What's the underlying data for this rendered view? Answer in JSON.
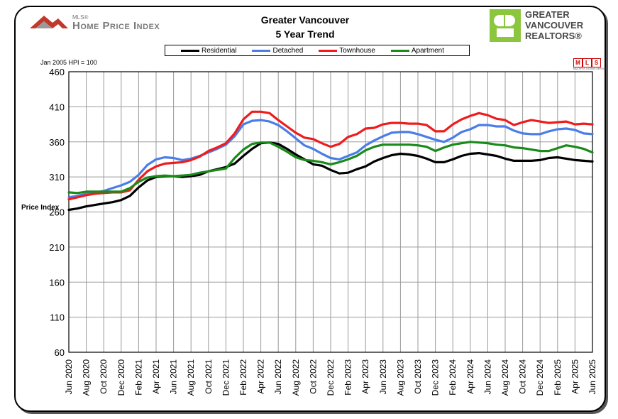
{
  "header": {
    "mls_small": "MLS®",
    "mls_title": "Home Price Index",
    "title_line1": "Greater Vancouver",
    "title_line2": "5 Year Trend",
    "brand_line1": "GREATER",
    "brand_line2": "VANCOUVER",
    "brand_line3": "REALTORS®",
    "hpi_note": "Jan 2005 HPI = 100",
    "crea_tag": "MULTIPLE LISTING SERVICE"
  },
  "colors": {
    "Residential": "#000000",
    "Detached": "#4a7de8",
    "Townhouse": "#ee1c1c",
    "Apartment": "#1a8a1a",
    "grid": "#9a9a9a"
  },
  "chart_data": {
    "type": "line",
    "title": "Greater Vancouver 5 Year Trend",
    "ylabel": "Price Index",
    "xlabel": "",
    "ylim": [
      60,
      460
    ],
    "yticks": [
      60,
      110,
      160,
      210,
      260,
      310,
      360,
      410,
      460
    ],
    "grid": true,
    "legend": "top-center",
    "xtick_labels": [
      "Jun 2020",
      "Aug 2020",
      "Oct 2020",
      "Dec 2020",
      "Feb 2021",
      "Apr 2021",
      "Jun 2021",
      "Aug 2021",
      "Oct 2021",
      "Dec 2021",
      "Feb 2022",
      "Apr 2022",
      "Jun 2022",
      "Aug 2022",
      "Oct 2022",
      "Dec 2022",
      "Feb 2023",
      "Apr 2023",
      "Jun 2023",
      "Aug 2023",
      "Oct 2023",
      "Dec 2023",
      "Feb 2024",
      "Apr 2024",
      "Jun 2024",
      "Aug 2024",
      "Oct 2024",
      "Dec 2024",
      "Feb 2025",
      "Apr 2025",
      "Jun 2025"
    ],
    "series": [
      {
        "name": "Residential",
        "values": [
          263,
          265,
          268,
          270,
          272,
          274,
          277,
          283,
          295,
          305,
          310,
          311,
          311,
          310,
          311,
          313,
          318,
          321,
          324,
          329,
          340,
          350,
          358,
          359,
          357,
          350,
          342,
          335,
          328,
          326,
          320,
          315,
          316,
          321,
          325,
          332,
          337,
          341,
          343,
          342,
          340,
          336,
          331,
          331,
          335,
          340,
          343,
          344,
          342,
          340,
          336,
          333,
          333,
          333,
          334,
          337,
          338,
          336,
          334,
          333,
          332
        ]
      },
      {
        "name": "Detached",
        "values": [
          281,
          283,
          286,
          288,
          290,
          294,
          298,
          303,
          313,
          327,
          335,
          338,
          337,
          334,
          336,
          340,
          345,
          350,
          356,
          368,
          385,
          390,
          391,
          389,
          384,
          375,
          365,
          355,
          350,
          343,
          337,
          335,
          340,
          345,
          355,
          362,
          368,
          373,
          374,
          374,
          371,
          367,
          363,
          360,
          366,
          374,
          378,
          384,
          384,
          382,
          382,
          376,
          372,
          371,
          371,
          375,
          378,
          379,
          377,
          372,
          371
        ]
      },
      {
        "name": "Townhouse",
        "values": [
          278,
          281,
          284,
          286,
          287,
          288,
          288,
          291,
          306,
          318,
          325,
          329,
          330,
          331,
          334,
          339,
          347,
          352,
          358,
          372,
          392,
          403,
          403,
          401,
          391,
          382,
          373,
          366,
          364,
          358,
          353,
          357,
          367,
          371,
          379,
          380,
          385,
          387,
          387,
          386,
          386,
          384,
          375,
          375,
          385,
          392,
          397,
          401,
          398,
          393,
          391,
          384,
          388,
          391,
          389,
          387,
          388,
          389,
          385,
          386,
          385
        ]
      },
      {
        "name": "Apartment",
        "values": [
          288,
          287,
          289,
          289,
          289,
          289,
          289,
          294,
          303,
          309,
          311,
          312,
          311,
          312,
          313,
          316,
          318,
          320,
          322,
          337,
          349,
          357,
          359,
          359,
          353,
          346,
          338,
          334,
          333,
          331,
          328,
          331,
          335,
          340,
          348,
          353,
          356,
          356,
          356,
          356,
          355,
          353,
          347,
          352,
          356,
          358,
          360,
          359,
          358,
          356,
          355,
          352,
          351,
          349,
          347,
          347,
          351,
          355,
          353,
          350,
          345
        ]
      }
    ]
  }
}
